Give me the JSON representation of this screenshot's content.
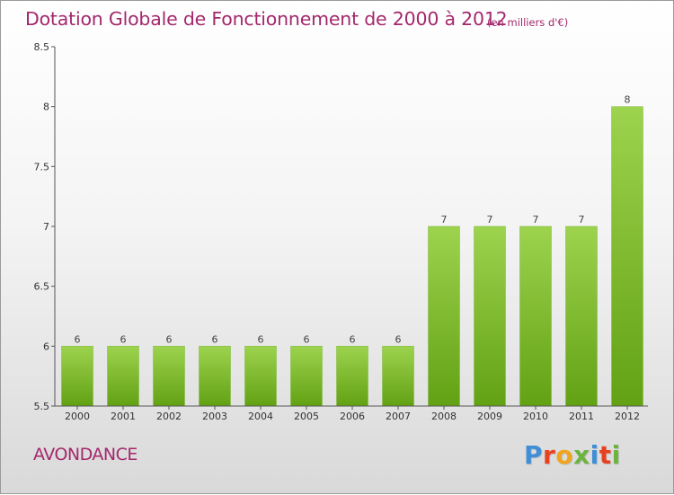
{
  "header": {
    "title": "Dotation Globale de Fonctionnement de 2000 à 2012",
    "unit_note": "(en milliers d'€)"
  },
  "footer": {
    "town": "AVONDANCE",
    "logo": "Proxiti"
  },
  "colors": {
    "title": "#a3286c",
    "bar_light": "#9dd34e",
    "bar_dark": "#62a114",
    "logo_letters": [
      "#3f8ed6",
      "#e8411f",
      "#f1a51d",
      "#6db33f",
      "#3f8ed6",
      "#e8411f",
      "#6db33f"
    ]
  },
  "chart_data": {
    "type": "bar",
    "categories": [
      "2000",
      "2001",
      "2002",
      "2003",
      "2004",
      "2005",
      "2006",
      "2007",
      "2008",
      "2009",
      "2010",
      "2011",
      "2012"
    ],
    "values": [
      6,
      6,
      6,
      6,
      6,
      6,
      6,
      6,
      7,
      7,
      7,
      7,
      8
    ],
    "data_labels": [
      "6",
      "6",
      "6",
      "6",
      "6",
      "6",
      "6",
      "6",
      "7",
      "7",
      "7",
      "7",
      "8"
    ],
    "ylim": [
      5.5,
      8.5
    ],
    "yticks": [
      5.5,
      6,
      6.5,
      7,
      7.5,
      8,
      8.5
    ],
    "ytick_labels": [
      "5.5",
      "6",
      "6.5",
      "7",
      "7.5",
      "8",
      "8.5"
    ],
    "xlabel": "",
    "ylabel": "",
    "grid": false
  }
}
